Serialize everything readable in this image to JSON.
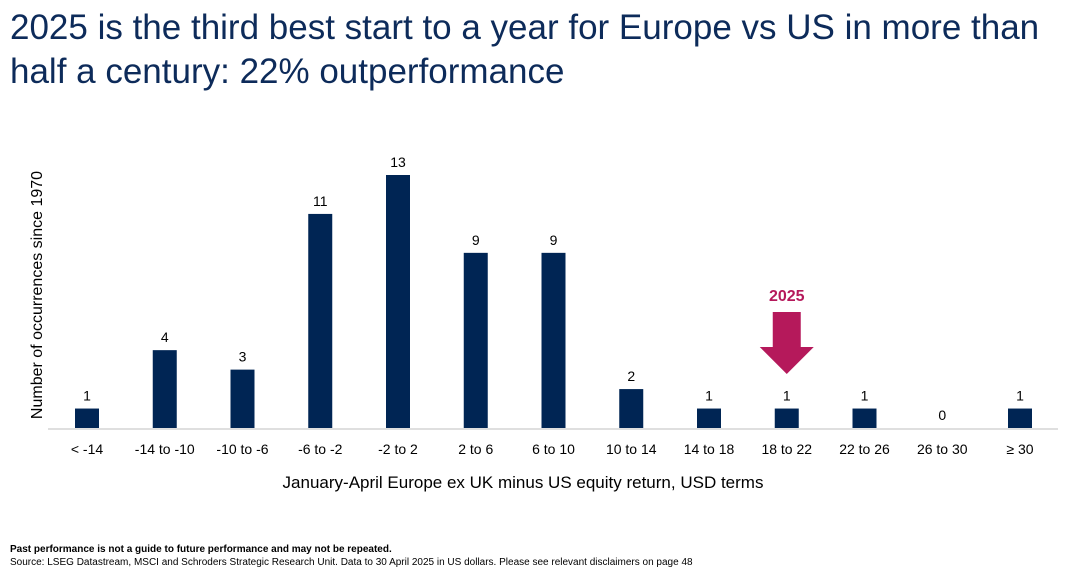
{
  "title": "2025 is the third best start to a year for Europe vs US in more than half a century: 22% outperformance",
  "chart_data": {
    "type": "bar",
    "categories": [
      "< -14",
      "-14 to -10",
      "-10 to -6",
      "-6 to -2",
      "-2 to 2",
      "2 to 6",
      "6 to 10",
      "10 to 14",
      "14 to 18",
      "18 to 22",
      "22 to 26",
      "26 to 30",
      "≥ 30"
    ],
    "values": [
      1,
      4,
      3,
      11,
      13,
      9,
      9,
      2,
      1,
      1,
      1,
      0,
      1
    ],
    "xlabel": "January-April Europe ex UK minus US equity return, USD terms",
    "ylabel": "Number of occurrences since 1970",
    "ylim": [
      0,
      13
    ],
    "grid": false,
    "annotation": {
      "text": "2025",
      "category": "18 to 22",
      "color": "#b5195b"
    },
    "bar_color": "#002554"
  },
  "footer": {
    "disclaimer": "Past performance is not a guide to future performance and may not be repeated.",
    "source": "Source: LSEG Datastream, MSCI and Schroders Strategic Research Unit. Data to 30 April 2025 in US dollars. Please see relevant disclaimers on page 48"
  }
}
